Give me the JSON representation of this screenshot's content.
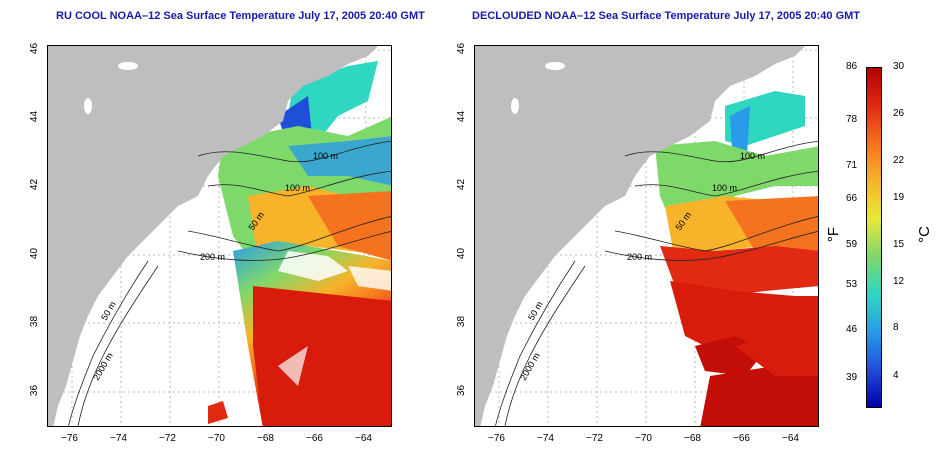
{
  "panels": [
    {
      "title": "RU COOL NOAA–12 Sea Surface Temperature July 17, 2005 20:40 GMT"
    },
    {
      "title": "DECLOUDED NOAA–12 Sea Surface Temperature July 17, 2005 20:40 GMT"
    }
  ],
  "axes": {
    "x_ticks": [
      "−76",
      "−74",
      "−72",
      "−70",
      "−68",
      "−66",
      "−64"
    ],
    "y_ticks": [
      "36",
      "38",
      "40",
      "42",
      "44",
      "46"
    ]
  },
  "contour_labels": {
    "m100a": "100 m",
    "m100b": "100 m",
    "m50": "50 m",
    "m200": "200 m",
    "m50b": "50 m",
    "m2000": "2000 m"
  },
  "colorbar": {
    "fahrenheit_unit": "°F",
    "celsius_unit": "°C",
    "fahrenheit_labels": [
      "86",
      "78",
      "71",
      "66",
      "59",
      "53",
      "46",
      "39"
    ],
    "celsius_labels": [
      "30",
      "26",
      "22",
      "19",
      "15",
      "12",
      "8",
      "4"
    ],
    "colors": [
      "#b30000",
      "#e02a12",
      "#f5721e",
      "#f7b32a",
      "#e8e83a",
      "#7fd86a",
      "#2fd6c0",
      "#2a9be8",
      "#1f4fd8",
      "#0000a8"
    ]
  },
  "colors": {
    "land": "#bebebe",
    "title": "#1a1aa8"
  }
}
